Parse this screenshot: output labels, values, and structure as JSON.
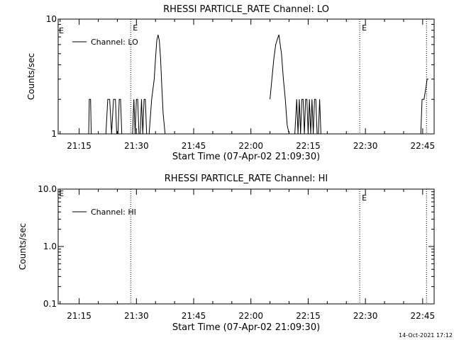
{
  "timestamp": "14-Oct-2021 17:12",
  "chart_data": [
    {
      "type": "line",
      "title": "RHESSI PARTICLE_RATE Channel: LO",
      "xlabel": "Start Time (07-Apr-02 21:09:30)",
      "ylabel": "Counts/sec",
      "yscale": "log",
      "xlim": [
        "21:09:30",
        "22:48:00"
      ],
      "ylim": [
        1,
        10
      ],
      "x_ticks": [
        "21:15",
        "21:30",
        "21:45",
        "22:00",
        "22:15",
        "22:30",
        "22:45"
      ],
      "y_ticks": [
        "1",
        "10"
      ],
      "legend": {
        "position": "top-left",
        "entries": [
          "Channel: LO"
        ]
      },
      "event_markers": [
        {
          "time": "21:28:30",
          "label": "E"
        },
        {
          "time": "22:28:30",
          "label": "E"
        },
        {
          "time": "22:46:00",
          "label": ""
        }
      ],
      "series": [
        {
          "name": "Channel: LO",
          "segments": [
            {
              "x": [
                "21:17:00",
                "21:17:30",
                "21:17:40",
                "21:18:00",
                "21:18:10",
                "21:18:30"
              ],
              "y": [
                1,
                1,
                2,
                2,
                1,
                1
              ]
            },
            {
              "x": [
                "21:22:00",
                "21:22:30",
                "21:23:00",
                "21:23:30",
                "21:24:00",
                "21:24:30",
                "21:24:50",
                "21:25:10",
                "21:25:30",
                "21:25:50",
                "21:26:10",
                "21:26:30",
                "21:27:00"
              ],
              "y": [
                1,
                2,
                2,
                1,
                2,
                2,
                1,
                1,
                2,
                2,
                1,
                1,
                1
              ]
            },
            {
              "x": [
                "21:29:00",
                "21:29:20",
                "21:29:40",
                "21:30:00",
                "21:30:20",
                "21:30:40",
                "21:31:00",
                "21:31:20",
                "21:31:40",
                "21:32:00",
                "21:32:20",
                "21:32:40"
              ],
              "y": [
                1,
                2,
                1,
                2,
                2,
                1,
                1,
                2,
                1,
                2,
                2,
                1
              ]
            },
            {
              "x": [
                "21:33:20",
                "21:34:00",
                "21:34:40",
                "21:35:00",
                "21:35:20",
                "21:35:40",
                "21:36:00",
                "21:36:20",
                "21:36:40",
                "21:37:00",
                "21:37:30"
              ],
              "y": [
                1,
                2,
                3,
                4.5,
                6.5,
                7.3,
                6.5,
                4.5,
                2.5,
                1.5,
                1
              ]
            },
            {
              "x": [
                "22:05:00",
                "22:05:30",
                "22:06:00",
                "22:06:30",
                "22:07:00",
                "22:07:20",
                "22:07:40",
                "22:08:00",
                "22:08:30",
                "22:09:00",
                "22:09:30",
                "22:10:00"
              ],
              "y": [
                2,
                3,
                4.5,
                6,
                6.8,
                7.3,
                6,
                5,
                3,
                2,
                1.2,
                1
              ]
            },
            {
              "x": [
                "22:11:30",
                "22:12:00",
                "22:12:20",
                "22:12:40",
                "22:13:00",
                "22:13:20",
                "22:13:40",
                "22:14:00",
                "22:14:20",
                "22:14:40",
                "22:15:00",
                "22:15:20",
                "22:15:40",
                "22:16:00",
                "22:16:20",
                "22:16:40",
                "22:17:00",
                "22:17:20",
                "22:17:40",
                "22:18:00",
                "22:18:20",
                "22:18:40"
              ],
              "y": [
                1,
                2,
                1,
                2,
                1,
                2,
                2,
                1,
                2,
                2,
                1,
                2,
                1,
                2,
                1,
                2,
                2,
                1,
                1,
                2,
                1,
                1
              ]
            },
            {
              "x": [
                "22:44:30",
                "22:44:50",
                "22:45:20",
                "22:45:50",
                "22:46:10",
                "22:46:30"
              ],
              "y": [
                1,
                2,
                2,
                2.5,
                3,
                3
              ]
            }
          ]
        }
      ]
    },
    {
      "type": "line",
      "title": "RHESSI PARTICLE_RATE Channel: HI",
      "xlabel": "Start Time (07-Apr-02 21:09:30)",
      "ylabel": "Counts/sec",
      "yscale": "log",
      "xlim": [
        "21:09:30",
        "22:48:00"
      ],
      "ylim": [
        0.1,
        10
      ],
      "x_ticks": [
        "21:15",
        "21:30",
        "21:45",
        "22:00",
        "22:15",
        "22:30",
        "22:45"
      ],
      "y_ticks": [
        "0.1",
        "1.0",
        "10.0"
      ],
      "legend": {
        "position": "top-left",
        "entries": [
          "Channel: HI"
        ]
      },
      "event_markers": [
        {
          "time": "21:28:30",
          "label": ""
        },
        {
          "time": "22:28:30",
          "label": "E"
        },
        {
          "time": "22:46:00",
          "label": ""
        }
      ],
      "edge_label": "E",
      "series": [
        {
          "name": "Channel: HI",
          "segments": []
        }
      ]
    }
  ]
}
